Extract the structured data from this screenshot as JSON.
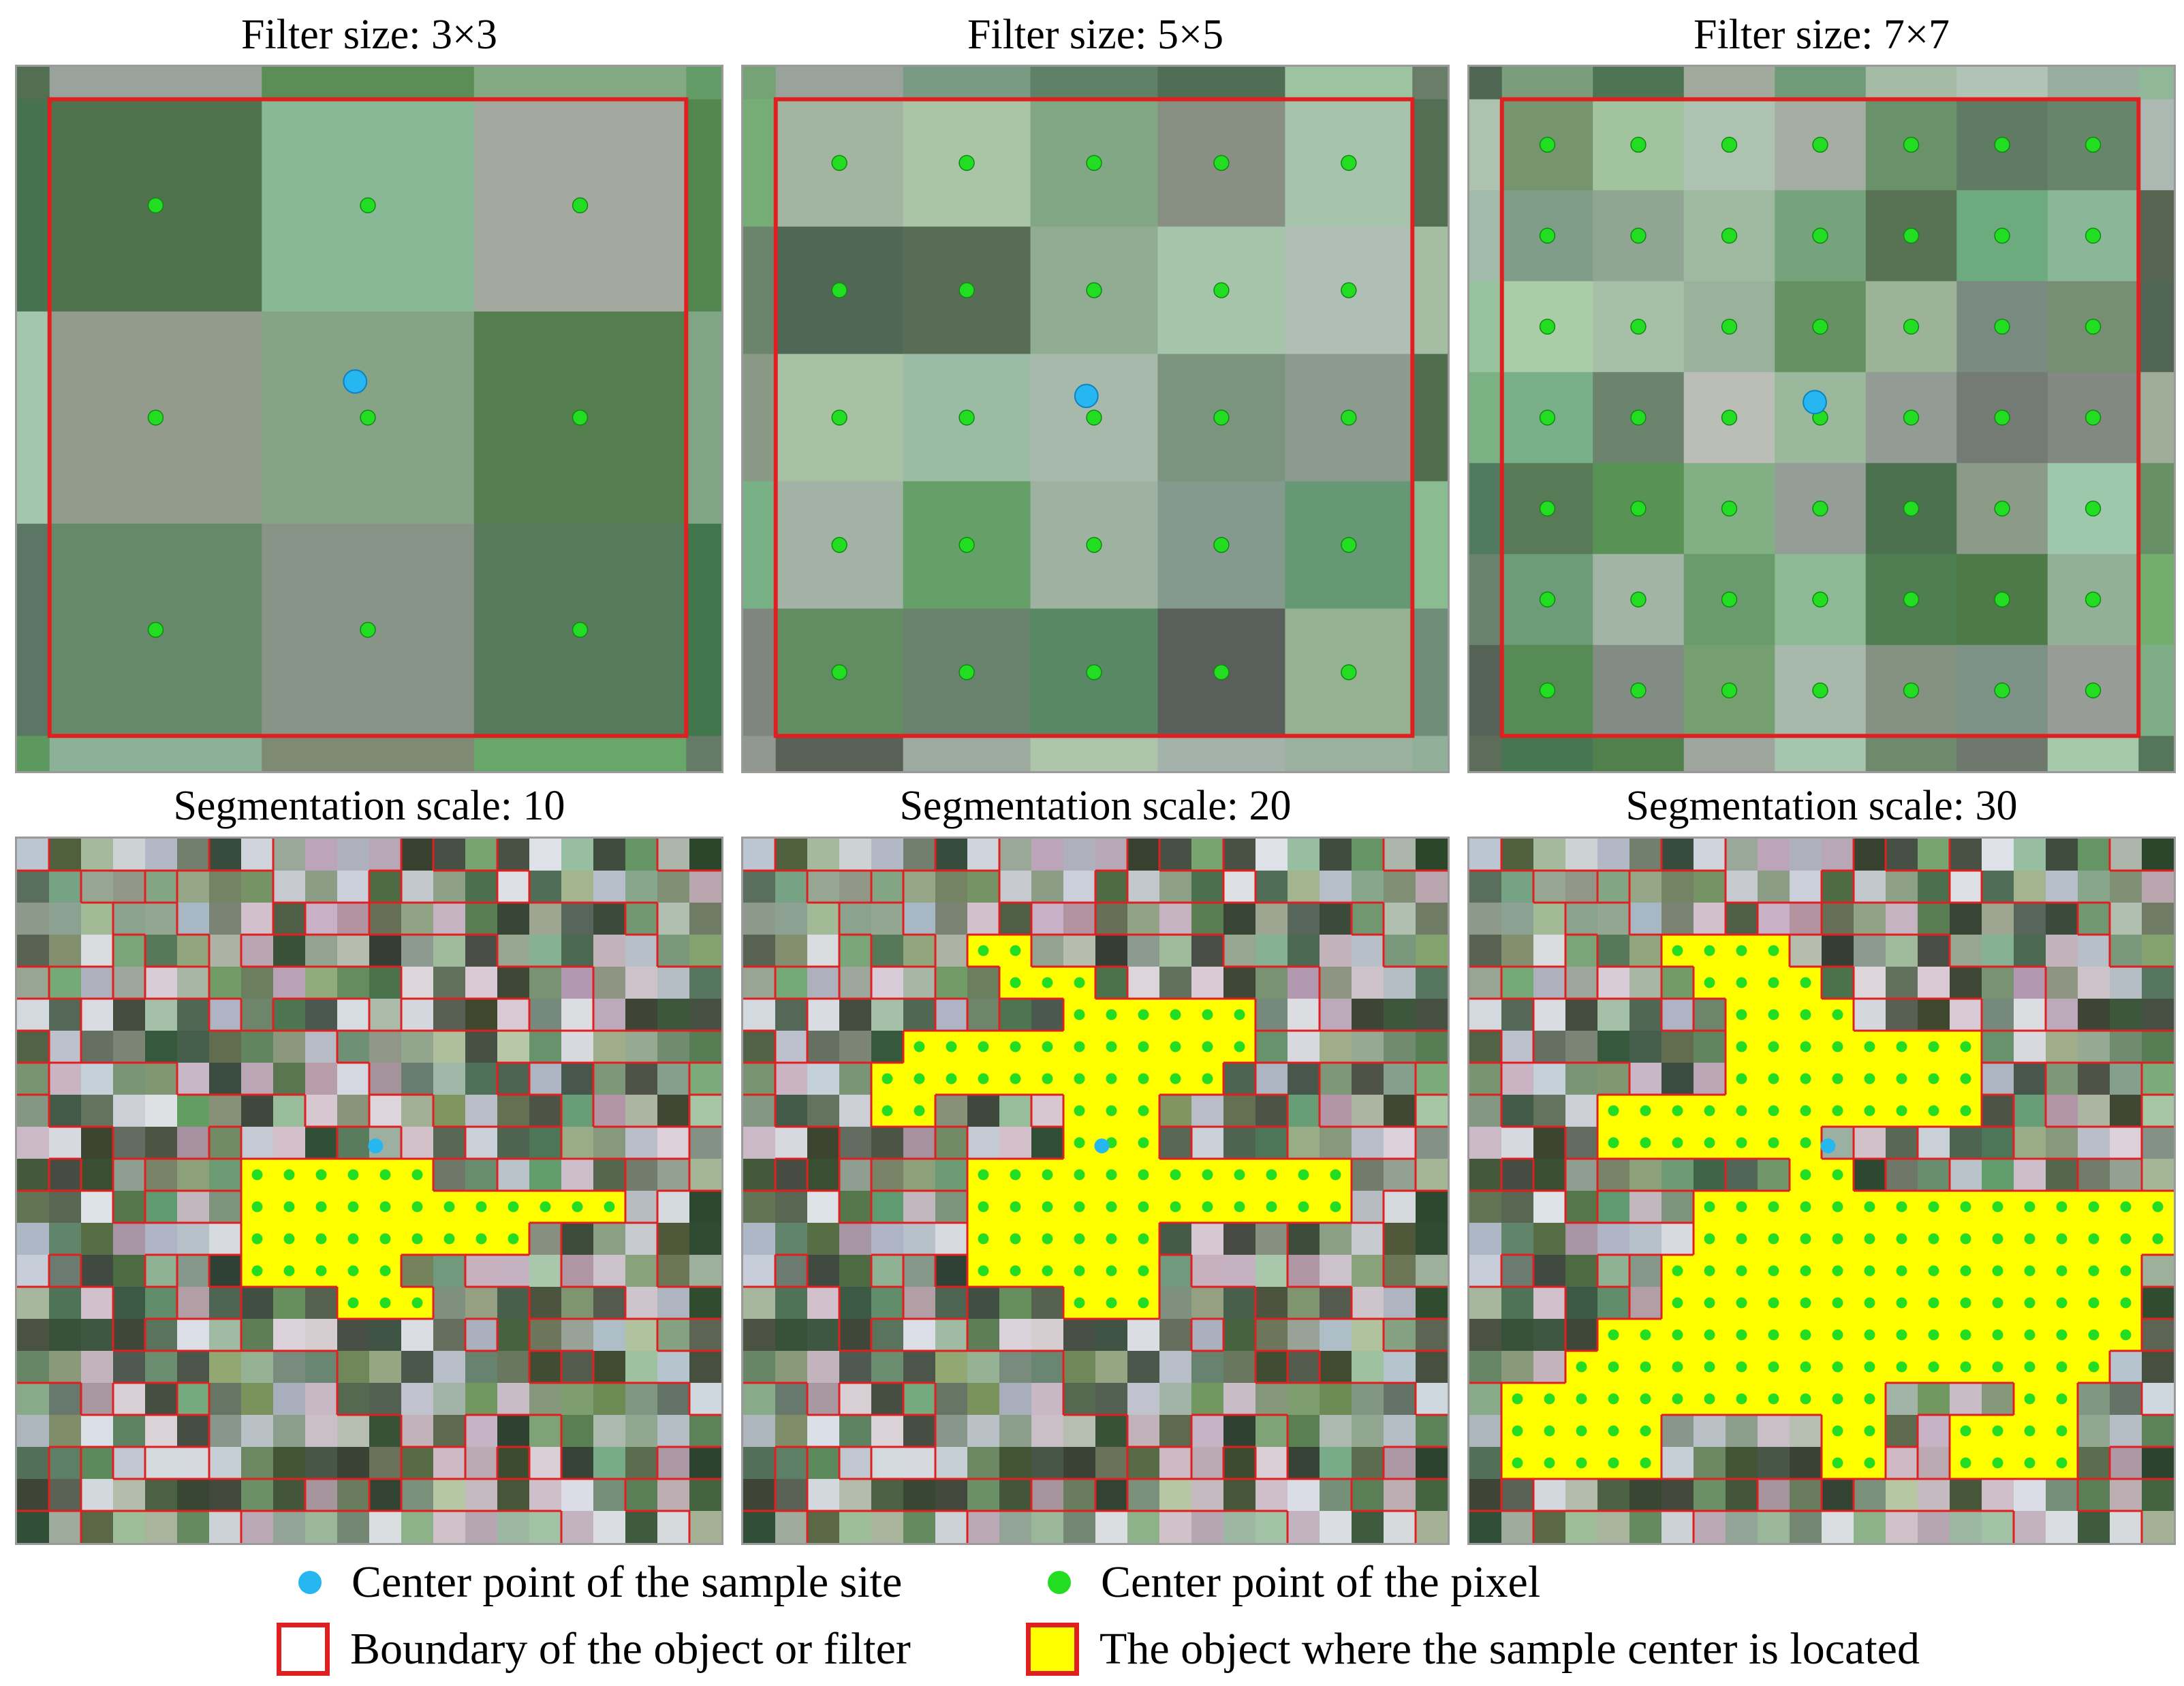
{
  "titles": {
    "filter_3": "Filter size: 3×3",
    "filter_5": "Filter size: 5×5",
    "filter_7": "Filter size: 7×7",
    "seg_10": "Segmentation scale: 10",
    "seg_20": "Segmentation scale: 20",
    "seg_30": "Segmentation scale: 30"
  },
  "legend": {
    "sample_center": "Center point of the sample site",
    "pixel_center": "Center point of the pixel",
    "boundary": "Boundary of the object or filter",
    "object": "The object where the sample center is located"
  },
  "colors": {
    "sample_center": "#26b6f0",
    "pixel_center": "#22dd22",
    "boundary": "#e02020",
    "object_fill": "#ffff00"
  },
  "filters": [
    {
      "id": "filter_3",
      "size": 3
    },
    {
      "id": "filter_5",
      "size": 5
    },
    {
      "id": "filter_7",
      "size": 7
    }
  ],
  "segmentations": [
    {
      "id": "seg_10",
      "scale": 10
    },
    {
      "id": "seg_20",
      "scale": 20
    },
    {
      "id": "seg_30",
      "scale": 30
    }
  ]
}
